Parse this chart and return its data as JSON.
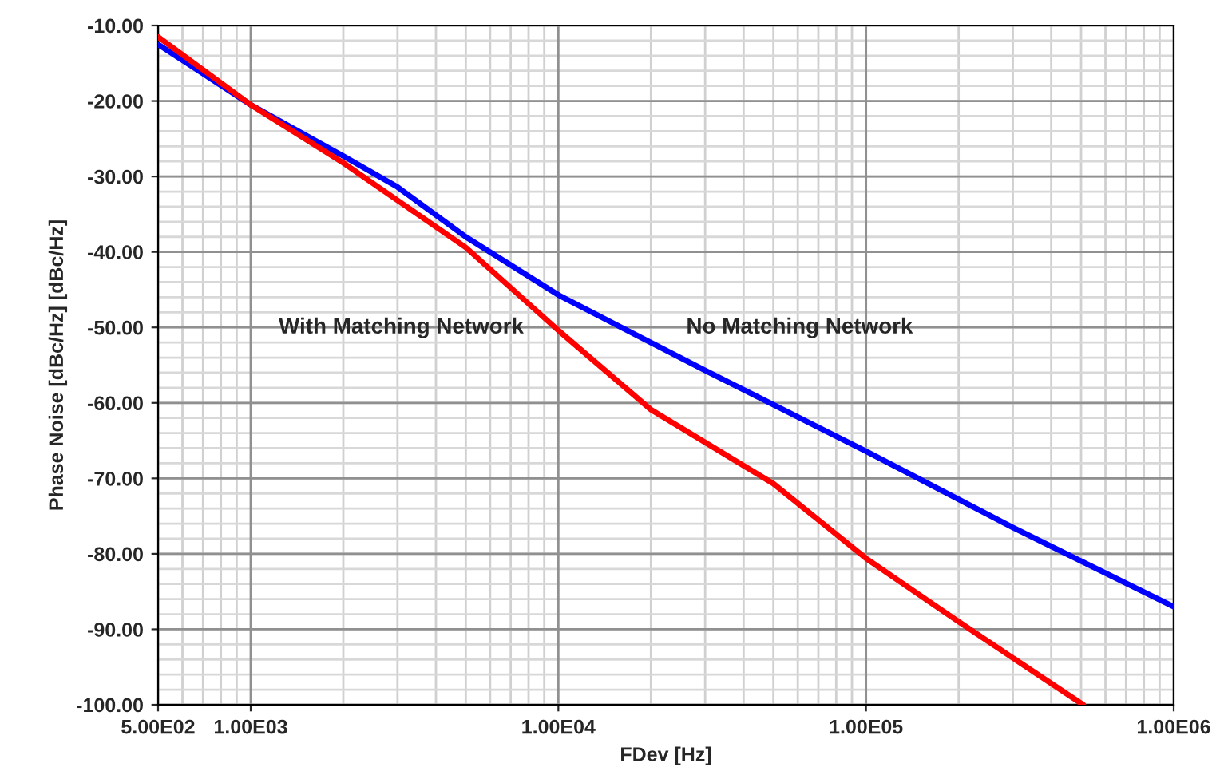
{
  "chart_data": {
    "type": "line",
    "xlabel": "FDev [Hz]",
    "ylabel": "Phase Noise [dBc/Hz] [dBc/Hz]",
    "log": "x",
    "xlim": [
      500,
      1000000
    ],
    "xticks": [
      {
        "value": 500,
        "label": "5.00E02"
      },
      {
        "value": 1000,
        "label": "1.00E03"
      },
      {
        "value": 10000,
        "label": "1.00E04"
      },
      {
        "value": 100000,
        "label": "1.00E05"
      },
      {
        "value": 1000000,
        "label": "1.00E06"
      }
    ],
    "ylim": [
      -100,
      -10
    ],
    "yticks": [
      {
        "value": -100,
        "label": "-100.00"
      },
      {
        "value": -90,
        "label": "-90.00"
      },
      {
        "value": -80,
        "label": "-80.00"
      },
      {
        "value": -70,
        "label": "-70.00"
      },
      {
        "value": -60,
        "label": "-60.00"
      },
      {
        "value": -50,
        "label": "-50.00"
      },
      {
        "value": -40,
        "label": "-40.00"
      },
      {
        "value": -30,
        "label": "-30.00"
      },
      {
        "value": -20,
        "label": "-20.00"
      },
      {
        "value": -10,
        "label": "-10.00"
      }
    ],
    "grid": true,
    "legend": false,
    "marker": "none",
    "line_style": "solid",
    "series": [
      {
        "name": "No Matching Network",
        "color": "#0000ff",
        "x": [
          500,
          1000,
          2000,
          3000,
          5000,
          10000,
          30000,
          100000,
          300000,
          1000000
        ],
        "values": [
          -12.5,
          -20.5,
          -27.3,
          -31.4,
          -38.0,
          -45.7,
          -55.7,
          -66.4,
          -76.5,
          -87.0
        ]
      },
      {
        "name": "With Matching Network",
        "color": "#ff0000",
        "x": [
          500,
          1000,
          2000,
          5000,
          10000,
          20000,
          50000,
          100000,
          200000,
          508000
        ],
        "values": [
          -11.5,
          -20.5,
          -28.2,
          -39.4,
          -50.4,
          -60.9,
          -70.7,
          -80.6,
          -89.0,
          -100.0
        ]
      }
    ]
  }
}
